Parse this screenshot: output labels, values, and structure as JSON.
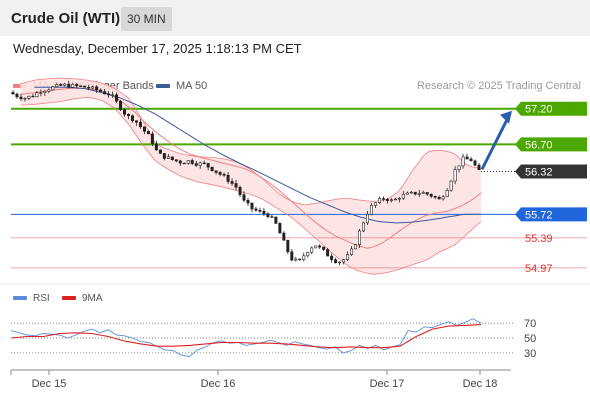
{
  "header": {
    "title": "Crude Oil (WTI)",
    "timeframe": "30 MIN"
  },
  "datetime": "Wednesday, December 17, 2025 1:18:13 PM CET",
  "legend": {
    "bollinger_label": "MA 20 + Bollinger Bands",
    "ma50_label": "MA 50",
    "credit": "Research © 2025 Trading Central"
  },
  "colors": {
    "bollinger": "#f08080",
    "band_fill": "#fde2e2",
    "ma50": "#3a5a9a",
    "green": "#4aa800",
    "blue": "#2266dd",
    "red": "#e03030",
    "current": "#333333",
    "rsi": "#5b8cdb",
    "rsi_ma": "#e02020"
  },
  "rsi_legend": {
    "rsi_label": "RSI",
    "ma_label": "9MA"
  },
  "chart_data": [
    {
      "type": "candlestick",
      "ylim": [
        54.8,
        57.35
      ],
      "x_labels": [
        "Dec 15",
        "Dec 16",
        "Dec 17",
        "Dec 18"
      ],
      "levels": [
        {
          "value": 57.2,
          "label": "57.20",
          "style": "resistance"
        },
        {
          "value": 56.7,
          "label": "56.70",
          "style": "resistance"
        },
        {
          "value": 56.32,
          "label": "56.32",
          "style": "current"
        },
        {
          "value": 55.72,
          "label": "55.72",
          "style": "support"
        },
        {
          "value": 55.39,
          "label": "55.39",
          "style": "support-minor"
        },
        {
          "value": 54.97,
          "label": "54.97",
          "style": "support-minor"
        }
      ],
      "forecast_arrow": {
        "from": 56.35,
        "to": 57.2
      },
      "close_path": [
        57.43,
        57.38,
        57.35,
        57.38,
        57.45,
        57.48,
        57.51,
        57.53,
        57.52,
        57.51,
        57.5,
        57.47,
        57.43,
        57.4,
        57.25,
        57.1,
        57.05,
        56.92,
        56.8,
        56.57,
        56.52,
        56.48,
        56.45,
        56.47,
        56.43,
        56.42,
        56.35,
        56.28,
        56.2,
        56.1,
        55.9,
        55.8,
        55.75,
        55.72,
        55.6,
        55.35,
        55.1,
        55.05,
        55.2,
        55.3,
        55.22,
        55.12,
        55.05,
        55.1,
        55.25,
        55.55,
        55.8,
        55.9,
        55.95,
        55.9,
        55.98,
        56.0,
        56.02,
        56.02,
        55.98,
        55.92,
        56.1,
        56.35,
        56.5,
        56.48,
        56.32
      ],
      "ma20_path": [
        57.4,
        57.42,
        57.44,
        57.46,
        57.48,
        57.49,
        57.48,
        57.46,
        57.4,
        57.3,
        57.18,
        57.02,
        56.88,
        56.76,
        56.65,
        56.57,
        56.52,
        56.48,
        56.44,
        56.4,
        56.36,
        56.28,
        56.18,
        56.06,
        55.92,
        55.78,
        55.64,
        55.52,
        55.42,
        55.35,
        55.28,
        55.24,
        55.3,
        55.4,
        55.52,
        55.62,
        55.7,
        55.74,
        55.76,
        55.82,
        55.9,
        56.02
      ],
      "band_upper_path": [
        57.55,
        57.6,
        57.62,
        57.63,
        57.62,
        57.6,
        57.56,
        57.48,
        57.35,
        57.05,
        56.7,
        56.62,
        56.56,
        56.53,
        56.52,
        56.5,
        56.45,
        56.35,
        56.2,
        56.02,
        55.9,
        55.85,
        55.88,
        55.92,
        55.95,
        55.92,
        55.9,
        55.92,
        56.05,
        56.35,
        56.6,
        56.62,
        56.58,
        56.4,
        56.36
      ],
      "band_lower_path": [
        57.25,
        57.26,
        57.28,
        57.3,
        57.34,
        57.36,
        57.32,
        57.2,
        56.98,
        56.7,
        56.46,
        56.34,
        56.24,
        56.18,
        56.14,
        56.1,
        56.05,
        56.0,
        55.92,
        55.8,
        55.68,
        55.52,
        55.35,
        55.18,
        55.02,
        54.92,
        54.88,
        54.9,
        54.95,
        55.02,
        55.08,
        55.2,
        55.28,
        55.45,
        55.62
      ],
      "ma50_path": [
        57.5,
        57.5,
        57.5,
        57.48,
        57.42,
        57.35,
        57.25,
        57.13,
        56.98,
        56.83,
        56.68,
        56.55,
        56.43,
        56.32,
        56.2,
        56.08,
        55.96,
        55.86,
        55.76,
        55.68,
        55.62,
        55.6,
        55.61,
        55.64,
        55.68,
        55.72,
        55.72
      ]
    },
    {
      "type": "line",
      "title": "RSI",
      "ylim": [
        15,
        85
      ],
      "y_ticks": [
        70,
        50,
        30
      ],
      "series": [
        {
          "name": "RSI",
          "values": [
            60,
            57,
            54,
            53,
            56,
            55,
            54,
            50,
            54,
            59,
            62,
            57,
            61,
            54,
            53,
            50,
            45,
            44,
            39,
            34,
            33,
            27,
            25,
            34,
            38,
            44,
            46,
            43,
            44,
            40,
            42,
            44,
            47,
            44,
            40,
            45,
            42,
            40,
            37,
            35,
            38,
            30,
            33,
            40,
            36,
            40,
            34,
            38,
            41,
            60,
            58,
            65,
            64,
            68,
            72,
            67,
            71,
            76,
            70
          ]
        },
        {
          "name": "9MA",
          "values": [
            50,
            52,
            52,
            56,
            57,
            56,
            52,
            46,
            42,
            39,
            39,
            40,
            42,
            44,
            44,
            43,
            43,
            42,
            40,
            38,
            37,
            38,
            37,
            37,
            39,
            52,
            62,
            66,
            67,
            68
          ]
        }
      ]
    }
  ]
}
